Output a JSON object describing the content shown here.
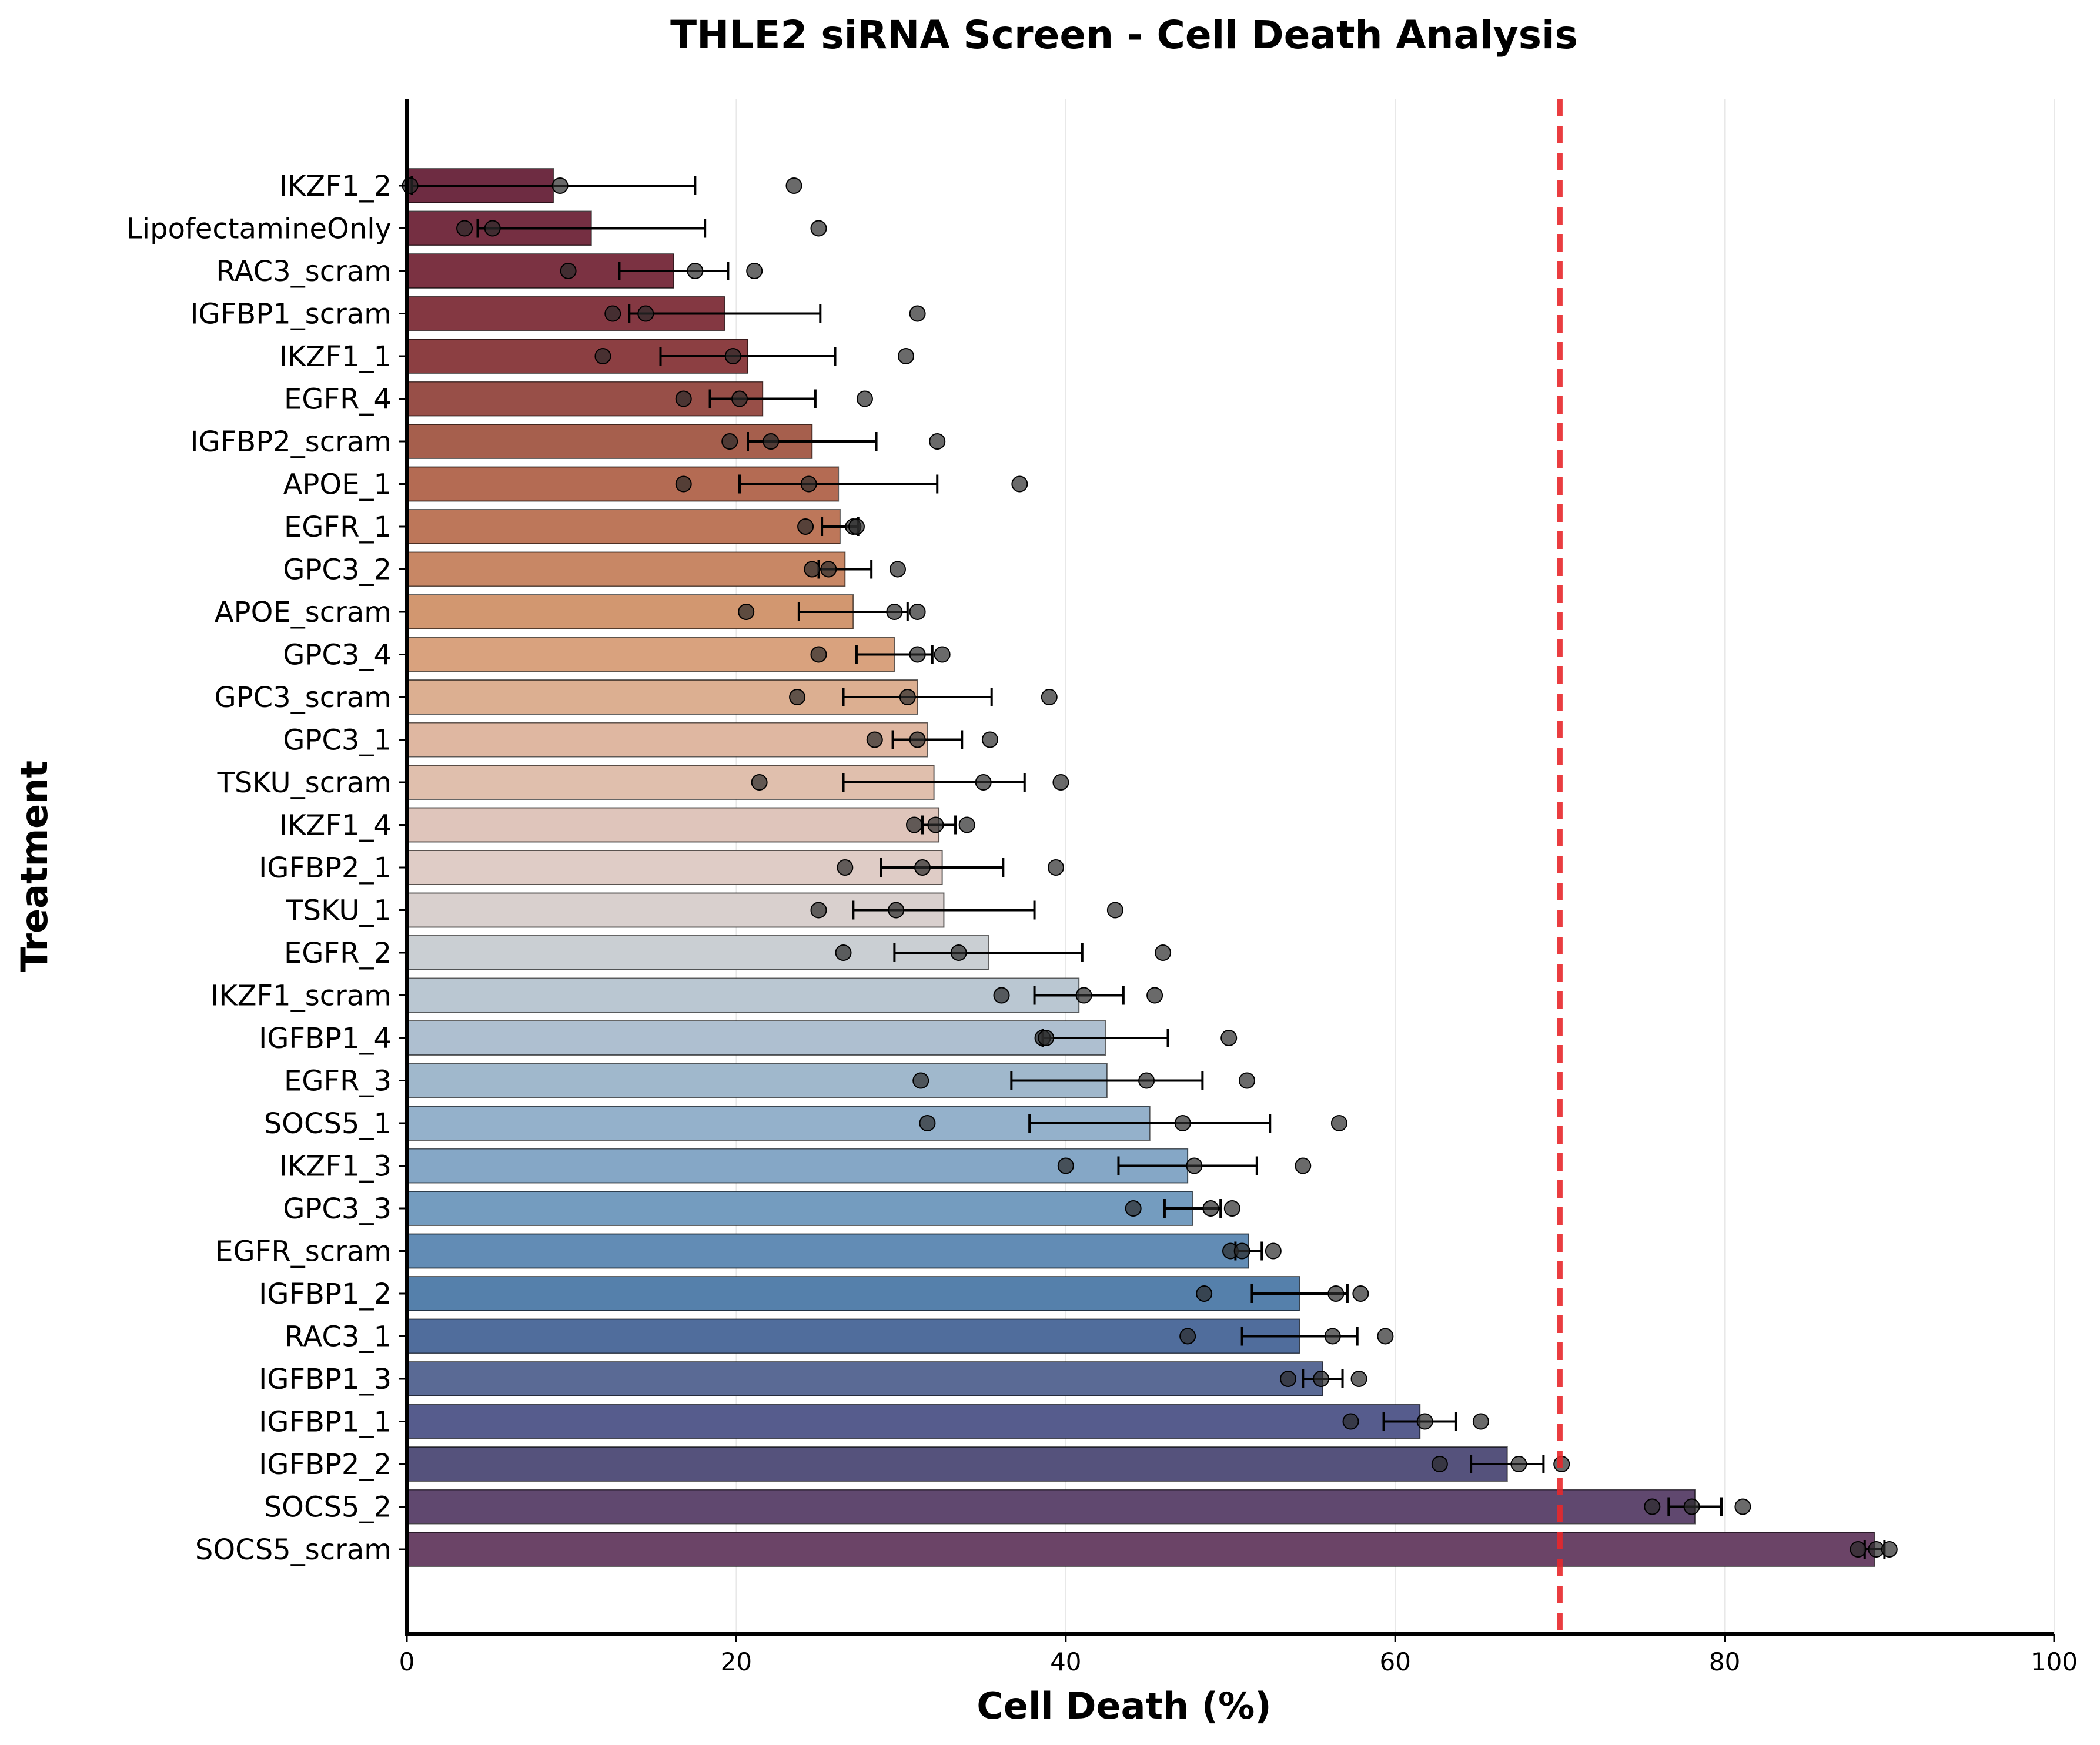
{
  "chart_data": {
    "type": "bar",
    "orientation": "horizontal",
    "title": "THLE2 siRNA Screen - Cell Death Analysis",
    "xlabel": "Cell Death (%)",
    "ylabel": "Treatment",
    "xlim": [
      0,
      100
    ],
    "xticks": [
      0,
      20,
      40,
      60,
      80,
      100
    ],
    "grid": "vertical",
    "threshold_line": {
      "x": 70,
      "style": "dashed",
      "color": "#e8282b"
    },
    "categories": [
      "IKZF1_2",
      "LipofectamineOnly",
      "RAC3_scram",
      "IGFBP1_scram",
      "IKZF1_1",
      "EGFR_4",
      "IGFBP2_scram",
      "APOE_1",
      "EGFR_1",
      "GPC3_2",
      "APOE_scram",
      "GPC3_4",
      "GPC3_scram",
      "GPC3_1",
      "TSKU_scram",
      "IKZF1_4",
      "IGFBP2_1",
      "TSKU_1",
      "EGFR_2",
      "IKZF1_scram",
      "IGFBP1_4",
      "EGFR_3",
      "SOCS5_1",
      "IKZF1_3",
      "GPC3_3",
      "EGFR_scram",
      "IGFBP1_2",
      "RAC3_1",
      "IGFBP1_3",
      "IGFBP1_1",
      "IGFBP2_2",
      "SOCS5_2",
      "SOCS5_scram"
    ],
    "values": [
      8.9,
      11.2,
      16.2,
      19.3,
      20.7,
      21.6,
      24.6,
      26.2,
      26.3,
      26.6,
      27.1,
      29.6,
      31.0,
      31.6,
      32.0,
      32.3,
      32.5,
      32.6,
      35.3,
      40.8,
      42.4,
      42.5,
      45.1,
      47.4,
      47.7,
      51.1,
      54.2,
      54.2,
      55.6,
      61.5,
      66.8,
      78.2,
      89.1
    ],
    "errors": [
      8.6,
      6.9,
      3.3,
      5.8,
      5.3,
      3.2,
      3.9,
      6.0,
      1.1,
      1.6,
      3.3,
      2.3,
      4.5,
      2.1,
      5.5,
      1.0,
      3.7,
      5.5,
      5.7,
      2.7,
      3.8,
      5.8,
      7.3,
      4.2,
      1.7,
      0.8,
      2.9,
      3.5,
      1.2,
      2.2,
      2.2,
      1.6,
      0.6
    ],
    "replicates": [
      [
        0.2,
        9.3,
        23.5
      ],
      [
        3.5,
        5.2,
        25.0
      ],
      [
        9.8,
        17.5,
        21.1
      ],
      [
        12.5,
        14.5,
        31.0
      ],
      [
        11.9,
        19.8,
        30.3
      ],
      [
        16.8,
        20.2,
        27.8
      ],
      [
        19.6,
        22.1,
        32.2
      ],
      [
        16.8,
        24.4,
        37.2
      ],
      [
        24.2,
        27.1,
        27.3
      ],
      [
        24.6,
        25.6,
        29.8
      ],
      [
        20.6,
        29.6,
        31.0
      ],
      [
        25.0,
        31.0,
        32.5
      ],
      [
        23.7,
        30.4,
        39.0
      ],
      [
        28.4,
        31.0,
        35.4
      ],
      [
        21.4,
        35.0,
        39.7
      ],
      [
        30.8,
        32.1,
        34.0
      ],
      [
        26.6,
        31.3,
        39.4
      ],
      [
        25.0,
        29.7,
        43.0
      ],
      [
        26.5,
        33.5,
        45.9
      ],
      [
        36.1,
        41.1,
        45.4
      ],
      [
        38.6,
        38.8,
        49.9
      ],
      [
        31.2,
        44.9,
        51.0
      ],
      [
        31.6,
        47.1,
        56.6
      ],
      [
        40.0,
        47.8,
        54.4
      ],
      [
        44.1,
        48.8,
        50.1
      ],
      [
        50.0,
        50.7,
        52.6
      ],
      [
        48.4,
        56.4,
        57.9
      ],
      [
        47.4,
        56.2,
        59.4
      ],
      [
        53.5,
        55.5,
        57.8
      ],
      [
        57.3,
        61.8,
        65.2
      ],
      [
        62.7,
        67.5,
        70.1
      ],
      [
        75.6,
        78.0,
        81.1
      ],
      [
        88.1,
        89.2,
        90.0
      ]
    ],
    "colors": [
      "#6e2c42",
      "#752f42",
      "#7b3242",
      "#843842",
      "#8c3f42",
      "#984f48",
      "#a65f4d",
      "#b46b53",
      "#bd775a",
      "#c88765",
      "#d29770",
      "#d9a27e",
      "#dcaf91",
      "#dfb7a1",
      "#e0bfad",
      "#dfc5bb",
      "#dfccc6",
      "#d9d0ce",
      "#cacfd3",
      "#bac7d2",
      "#aebfd0",
      "#a0b8cc",
      "#94b1cb",
      "#85a7c6",
      "#749cbf",
      "#628cb5",
      "#5580ab",
      "#506d9c",
      "#5a6a95",
      "#565c8d",
      "#55527c",
      "#60486f",
      "#6b4467"
    ]
  }
}
